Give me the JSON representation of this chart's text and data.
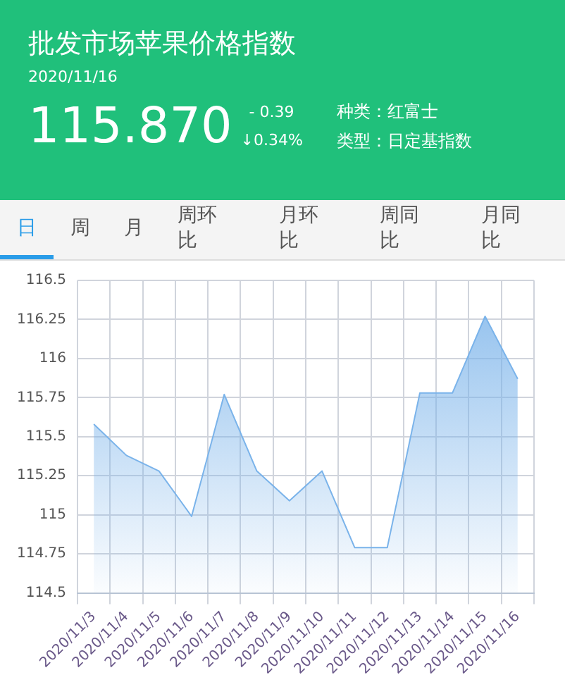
{
  "chart_data": [
    {
      "type": "other",
      "title": "批发市场苹果价格指数",
      "subtitle": "2020/11/16",
      "annotations": [
        "115.870",
        "- 0.39",
        "↓0.34%",
        "种类：红富士",
        "类型：日定基指数",
        "日",
        "周",
        "月",
        "周环比",
        "月环比",
        "周同比",
        "月同比"
      ]
    },
    {
      "type": "area",
      "categories": [
        "2020/11/3",
        "2020/11/4",
        "2020/11/5",
        "2020/11/6",
        "2020/11/7",
        "2020/11/8",
        "2020/11/9",
        "2020/11/10",
        "2020/11/11",
        "2020/11/12",
        "2020/11/13",
        "2020/11/14",
        "2020/11/15",
        "2020/11/16"
      ],
      "series": [
        {
          "color": "#7ab3ea",
          "values": [
            115.58,
            115.38,
            115.28,
            114.99,
            115.77,
            115.28,
            115.09,
            115.28,
            114.79,
            114.79,
            115.78,
            115.78,
            116.27,
            115.87
          ]
        }
      ],
      "ylim": [
        114.5,
        116.5
      ],
      "yticks": [
        114.5,
        114.75,
        115,
        115.25,
        115.5,
        115.75,
        116,
        116.25,
        116.5
      ],
      "grid": true,
      "legend": false,
      "marker": "none"
    }
  ]
}
